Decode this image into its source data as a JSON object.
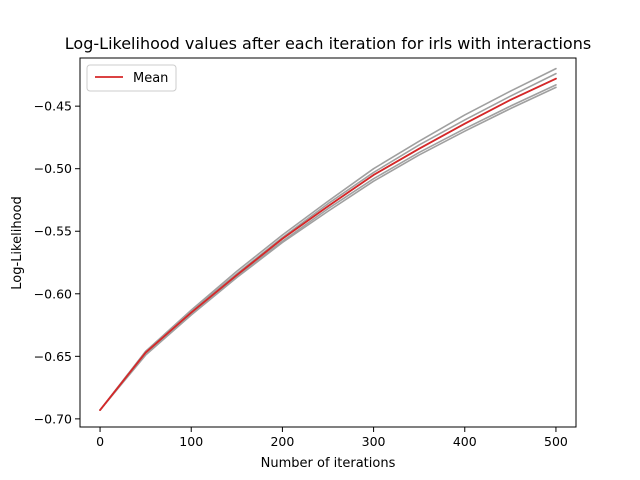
{
  "chart_data": {
    "type": "line",
    "title": "Log-Likelihood values after each iteration for irls with interactions",
    "xlabel": "Number of iterations",
    "ylabel": "Log-Likelihood",
    "xlim": [
      -22,
      522
    ],
    "ylim": [
      -0.7065,
      -0.4115
    ],
    "xticks": [
      0,
      100,
      200,
      300,
      400,
      500
    ],
    "xtick_labels": [
      "0",
      "100",
      "200",
      "300",
      "400",
      "500"
    ],
    "yticks": [
      -0.7,
      -0.65,
      -0.6,
      -0.55,
      -0.5,
      -0.45
    ],
    "ytick_labels": [
      "−0.70",
      "−0.65",
      "−0.60",
      "−0.55",
      "−0.50",
      "−0.45"
    ],
    "grid": false,
    "legend": {
      "position": "upper-left",
      "entries": [
        "Mean"
      ]
    },
    "x": [
      0,
      50,
      100,
      150,
      200,
      250,
      300,
      350,
      400,
      450,
      500
    ],
    "series": [
      {
        "name": "Mean",
        "color": "#d62728",
        "values": [
          -0.693,
          -0.647,
          -0.615,
          -0.585,
          -0.556,
          -0.53,
          -0.505,
          -0.484,
          -0.464,
          -0.445,
          -0.428
        ]
      },
      {
        "color": "#a0a0a0",
        "values": [
          -0.693,
          -0.646,
          -0.613,
          -0.582,
          -0.553,
          -0.526,
          -0.5,
          -0.478,
          -0.457,
          -0.438,
          -0.42
        ]
      },
      {
        "color": "#a0a0a0",
        "values": [
          -0.693,
          -0.646,
          -0.614,
          -0.584,
          -0.555,
          -0.528,
          -0.503,
          -0.481,
          -0.461,
          -0.442,
          -0.424
        ]
      },
      {
        "color": "#a0a0a0",
        "values": [
          -0.693,
          -0.647,
          -0.615,
          -0.585,
          -0.556,
          -0.53,
          -0.505,
          -0.484,
          -0.464,
          -0.445,
          -0.428
        ]
      },
      {
        "color": "#a0a0a0",
        "values": [
          -0.693,
          -0.648,
          -0.616,
          -0.586,
          -0.558,
          -0.532,
          -0.508,
          -0.487,
          -0.468,
          -0.45,
          -0.433
        ]
      },
      {
        "color": "#a0a0a0",
        "values": [
          -0.693,
          -0.649,
          -0.617,
          -0.587,
          -0.559,
          -0.534,
          -0.51,
          -0.489,
          -0.47,
          -0.452,
          -0.435
        ]
      }
    ]
  }
}
